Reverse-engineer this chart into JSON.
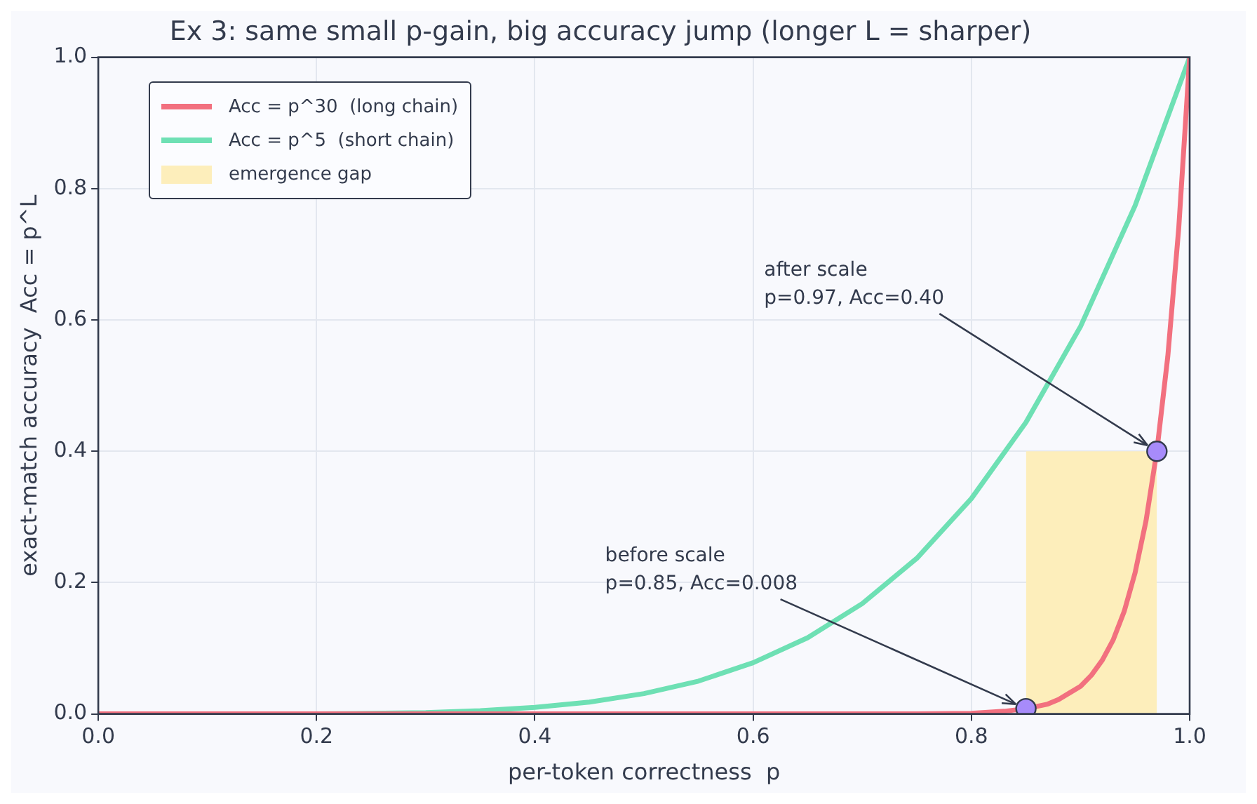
{
  "chart_data": {
    "type": "line",
    "title": "Ex 3: same small p-gain, big accuracy jump (longer L = sharper)",
    "xlabel": "per-token correctness  p",
    "ylabel": "exact-match accuracy  Acc = p^L",
    "xlim": [
      0,
      1
    ],
    "ylim": [
      0,
      1
    ],
    "xticks": [
      {
        "value": 0,
        "label": "0.0"
      },
      0.2,
      0.4,
      0.6,
      0.8,
      {
        "value": 1,
        "label": "1.0"
      }
    ],
    "yticks": [
      {
        "value": 0,
        "label": "0.0"
      },
      0.2,
      0.4,
      0.6,
      0.8,
      {
        "value": 1,
        "label": "1.0"
      }
    ],
    "grid": true,
    "legend": "top left",
    "series": [
      {
        "name": "emergence gap",
        "type": "area",
        "color": "#fdeebb",
        "x": [
          0.85,
          0.97
        ],
        "values": [
          0.4,
          0.4
        ]
      },
      {
        "name": "Acc = p^30  (long chain)",
        "color": "#f2707f",
        "x": [
          0,
          0.5,
          0.7,
          0.75,
          0.8,
          0.83,
          0.85,
          0.87,
          0.88,
          0.9,
          0.91,
          0.92,
          0.93,
          0.94,
          0.95,
          0.96,
          0.97,
          0.98,
          0.99,
          1
        ],
        "values": [
          0,
          0,
          0,
          0,
          0.001,
          0.004,
          0.008,
          0.015,
          0.022,
          0.042,
          0.059,
          0.082,
          0.113,
          0.156,
          0.215,
          0.294,
          0.401,
          0.545,
          0.74,
          1
        ]
      },
      {
        "name": "Acc = p^5  (short chain)",
        "color": "#6ee0b4",
        "x": [
          0,
          0.2,
          0.3,
          0.35,
          0.4,
          0.45,
          0.5,
          0.55,
          0.6,
          0.65,
          0.7,
          0.75,
          0.8,
          0.85,
          0.9,
          0.95,
          1
        ],
        "values": [
          0,
          0,
          0.002,
          0.005,
          0.01,
          0.018,
          0.031,
          0.05,
          0.078,
          0.116,
          0.168,
          0.237,
          0.328,
          0.444,
          0.59,
          0.774,
          1
        ]
      },
      {
        "type": "scatter",
        "color": "#a78bfa",
        "marker": "circle",
        "x": [
          0.85,
          0.97
        ],
        "values": [
          0.008,
          0.4
        ]
      }
    ],
    "annotations": [
      {
        "text": "before scale\np=0.85, Acc=0.008",
        "x": 0.85,
        "y": 0.008
      },
      {
        "text": "after scale\np=0.97, Acc=0.40",
        "x": 0.97,
        "y": 0.4
      }
    ]
  }
}
